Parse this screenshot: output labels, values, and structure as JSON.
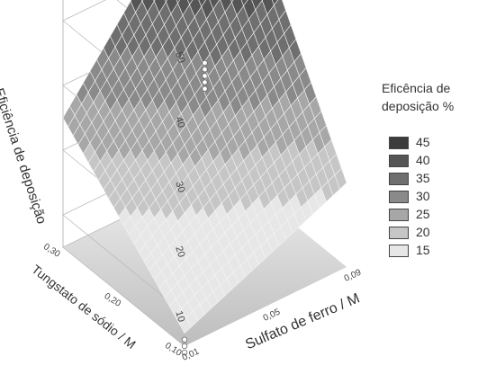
{
  "chart_data": {
    "type": "surface",
    "title": "",
    "xlabel": "Sulfato de ferro / M",
    "ylabel": "Tungstato de sódio / M",
    "zlabel": "Eficiência de deposição",
    "x_ticks": [
      "0,01",
      "0,05",
      "0,09"
    ],
    "y_ticks": [
      "0,10",
      "0,20",
      "0,30"
    ],
    "z_ticks": [
      "10",
      "20",
      "30",
      "40",
      "50"
    ],
    "xlim": [
      0.01,
      0.09
    ],
    "ylim": [
      0.1,
      0.3
    ],
    "zlim": [
      5,
      55
    ],
    "surface_corners": [
      {
        "x": 0.01,
        "y": 0.1,
        "z": 7
      },
      {
        "x": 0.09,
        "y": 0.1,
        "z": 18
      },
      {
        "x": 0.01,
        "y": 0.3,
        "z": 25
      },
      {
        "x": 0.09,
        "y": 0.3,
        "z": 56
      }
    ],
    "points": [
      {
        "x": 0.05,
        "y": 0.2,
        "z": 31
      },
      {
        "x": 0.05,
        "y": 0.2,
        "z": 32
      },
      {
        "x": 0.05,
        "y": 0.2,
        "z": 33
      },
      {
        "x": 0.05,
        "y": 0.2,
        "z": 34
      },
      {
        "x": 0.05,
        "y": 0.2,
        "z": 35
      },
      {
        "x": 0.01,
        "y": 0.1,
        "z": 4
      },
      {
        "x": 0.01,
        "y": 0.1,
        "z": 5
      },
      {
        "x": 0.01,
        "y": 0.1,
        "z": 6
      }
    ],
    "legend": {
      "title_line1": "Eficência de",
      "title_line2": "deposição %",
      "levels": [
        {
          "label": "45",
          "color": "#3c3c3c"
        },
        {
          "label": "40",
          "color": "#555555"
        },
        {
          "label": "35",
          "color": "#6f6f6f"
        },
        {
          "label": "30",
          "color": "#8a8a8a"
        },
        {
          "label": "25",
          "color": "#a7a7a7"
        },
        {
          "label": "20",
          "color": "#c6c6c6"
        },
        {
          "label": "15",
          "color": "#e7e7e7"
        }
      ]
    }
  }
}
